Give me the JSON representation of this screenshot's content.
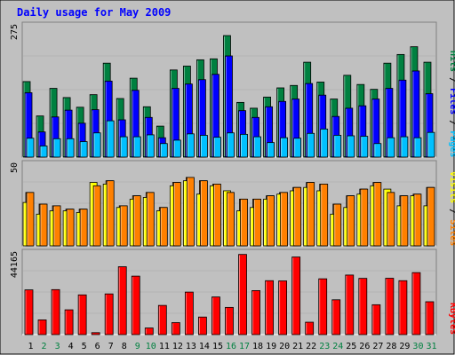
{
  "chart_data": {
    "type": "bar",
    "title": "Daily usage for May 2009",
    "categories": [
      "1",
      "2",
      "3",
      "4",
      "5",
      "6",
      "7",
      "8",
      "9",
      "10",
      "11",
      "12",
      "13",
      "14",
      "15",
      "16",
      "17",
      "18",
      "19",
      "20",
      "21",
      "22",
      "23",
      "24",
      "25",
      "26",
      "27",
      "28",
      "29",
      "30",
      "31"
    ],
    "weekend_days": [
      2,
      3,
      9,
      10,
      16,
      17,
      23,
      24,
      30,
      31
    ],
    "colors": {
      "background": "#c0c0c0",
      "title": "#0000ff",
      "hits": "#008040",
      "files": "#0000ff",
      "pages": "#00c0ff",
      "visits": "#ffff00",
      "sites": "#ff8000",
      "kbytes": "#ff0000",
      "weekday_label": "#000000",
      "weekend_label": "#008040"
    },
    "panels": [
      {
        "name": "hits-files-pages",
        "max_label": "275",
        "ylim": [
          0,
          275
        ],
        "legend": [
          "Pages",
          "Files",
          "Hits"
        ],
        "series": [
          {
            "name": "Hits",
            "values": [
              156,
              85,
              142,
              123,
              103,
              129,
              194,
              121,
              163,
              104,
              64,
              180,
              188,
              201,
              203,
              251,
              113,
              101,
              124,
              143,
              148,
              196,
              155,
              120,
              169,
              150,
              140,
              194,
              212,
              228,
              196
            ]
          },
          {
            "name": "Files",
            "values": [
              133,
              52,
              83,
              97,
              70,
              98,
              157,
              77,
              138,
              82,
              40,
              142,
              151,
              160,
              171,
              209,
              96,
              82,
              104,
              115,
              120,
              152,
              128,
              84,
              101,
              106,
              120,
              142,
              159,
              178,
              131
            ]
          },
          {
            "name": "Pages",
            "values": [
              39,
              23,
              38,
              38,
              32,
              50,
              75,
              42,
              42,
              46,
              28,
              35,
              48,
              45,
              41,
              50,
              47,
              42,
              30,
              40,
              39,
              49,
              58,
              45,
              44,
              43,
              28,
              40,
              42,
              40,
              51
            ]
          }
        ]
      },
      {
        "name": "visits-sites",
        "max_label": "50",
        "ylim": [
          0,
          50
        ],
        "legend": [
          "Sites",
          "Visits"
        ],
        "series": [
          {
            "name": "Visits",
            "values": [
              26,
              19,
              21,
              21,
              20,
              38,
              37,
              23,
              28,
              29,
              21,
              36,
              39,
              31,
              36,
              33,
              21,
              23,
              28,
              31,
              33,
              35,
              33,
              19,
              23,
              31,
              36,
              34,
              24,
              30,
              24
            ]
          },
          {
            "name": "Sites",
            "values": [
              32,
              25,
              24,
              22,
              22,
              36,
              39,
              24,
              30,
              32,
              23,
              38,
              41,
              39,
              37,
              32,
              28,
              28,
              30,
              32,
              35,
              38,
              37,
              25,
              30,
              34,
              38,
              32,
              30,
              31,
              35
            ]
          }
        ]
      },
      {
        "name": "kbytes",
        "max_label": "44165",
        "ylim": [
          0,
          44165
        ],
        "legend": [
          "KBytes"
        ],
        "series": [
          {
            "name": "KBytes",
            "values": [
              23680,
              7786,
              23810,
              13117,
              21032,
              1036,
              21539,
              35927,
              30957,
              3500,
              15443,
              6342,
              22502,
              9290,
              19924,
              14397,
              42434,
              23291,
              28541,
              28418,
              41081,
              6559,
              29538,
              18425,
              31524,
              29768,
              15810,
              29833,
              28541,
              32818,
              17394
            ]
          }
        ]
      }
    ]
  }
}
